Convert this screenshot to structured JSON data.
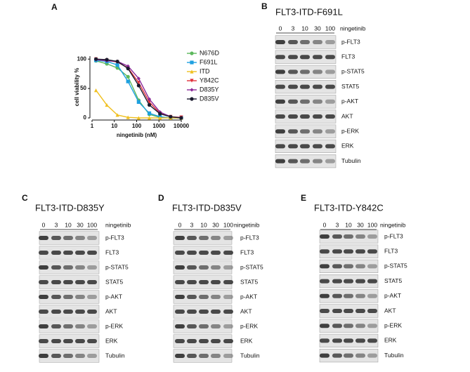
{
  "chart_data": {
    "type": "line",
    "panel_label": "A",
    "x_label": "ningetinib (nM)",
    "y_label": "cell viability %",
    "x": [
      1.5,
      4.6,
      13.7,
      41,
      123,
      370,
      1111,
      3333,
      10000
    ],
    "xlim": [
      1,
      10000
    ],
    "xticks": [
      1,
      10,
      100,
      1000,
      10000
    ],
    "log_x": true,
    "ylim": [
      0,
      105
    ],
    "yticks": [
      0,
      50,
      100
    ],
    "series": [
      {
        "name": "N676D",
        "color": "#5cb85c",
        "marker": "circle",
        "values": [
          97,
          92,
          85,
          70,
          30,
          6,
          1,
          0,
          0
        ]
      },
      {
        "name": "F691L",
        "color": "#1ea0e0",
        "marker": "square",
        "values": [
          98,
          96,
          90,
          62,
          27,
          8,
          2,
          0,
          0
        ]
      },
      {
        "name": "ITD",
        "color": "#f0c020",
        "marker": "triangle",
        "values": [
          47,
          22,
          5,
          1,
          0,
          0,
          0,
          0,
          0
        ]
      },
      {
        "name": "Y842C",
        "color": "#e0303a",
        "marker": "triangle-down",
        "values": [
          100,
          98,
          95,
          85,
          60,
          27,
          8,
          2,
          1
        ]
      },
      {
        "name": "D835Y",
        "color": "#8b2a9a",
        "marker": "diamond",
        "values": [
          99,
          97,
          96,
          88,
          67,
          32,
          10,
          2,
          0
        ]
      },
      {
        "name": "D835V",
        "color": "#1a1a2e",
        "marker": "circle",
        "values": [
          100,
          99,
          96,
          84,
          55,
          22,
          7,
          2,
          0
        ]
      }
    ]
  },
  "blots": [
    {
      "label": "B",
      "title": "FLT3-ITD-F691L",
      "doses": [
        0,
        3,
        10,
        30,
        100
      ],
      "treatment": "ningetinib",
      "rows": [
        "p-FLT3",
        "FLT3",
        "p-STAT5",
        "STAT5",
        "p-AKT",
        "AKT",
        "p-ERK",
        "ERK",
        "Tubulin"
      ]
    },
    {
      "label": "C",
      "title": "FLT3-ITD-D835Y",
      "doses": [
        0,
        3,
        10,
        30,
        100
      ],
      "treatment": "ningetinib",
      "rows": [
        "p-FLT3",
        "FLT3",
        "p-STAT5",
        "STAT5",
        "p-AKT",
        "AKT",
        "p-ERK",
        "ERK",
        "Tubulin"
      ]
    },
    {
      "label": "D",
      "title": "FLT3-ITD-D835V",
      "doses": [
        0,
        3,
        10,
        30,
        100
      ],
      "treatment": "ningetinib",
      "rows": [
        "p-FLT3",
        "FLT3",
        "p-STAT5",
        "STAT5",
        "p-AKT",
        "AKT",
        "p-ERK",
        "ERK",
        "Tubulin"
      ]
    },
    {
      "label": "E",
      "title": "FLT3-ITD-Y842C",
      "doses": [
        0,
        3,
        10,
        30,
        100
      ],
      "treatment": "ningetinib",
      "rows": [
        "p-FLT3",
        "FLT3",
        "p-STAT5",
        "STAT5",
        "p-AKT",
        "AKT",
        "p-ERK",
        "ERK",
        "Tubulin"
      ]
    }
  ]
}
